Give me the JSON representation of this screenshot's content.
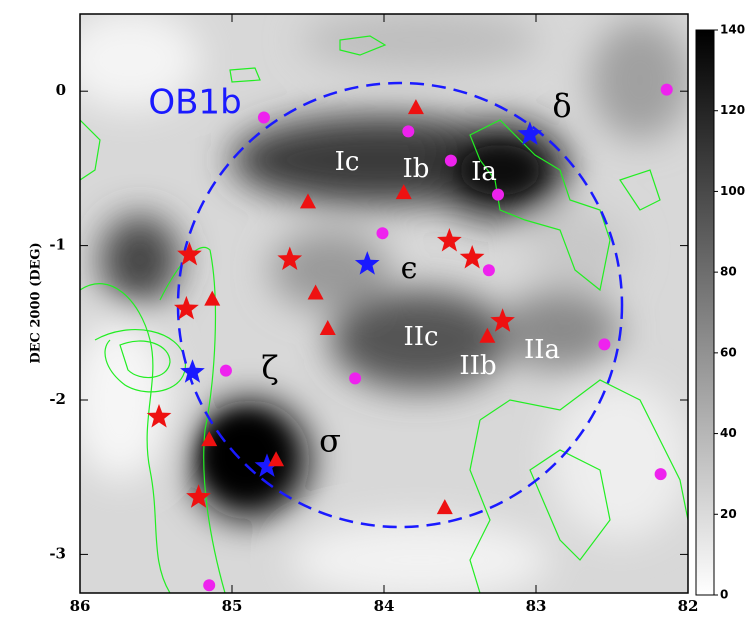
{
  "chart_data": {
    "type": "scatter",
    "ylabel": "DEC 2000 (DEG)",
    "xlim": [
      86,
      82
    ],
    "xticks": [
      86,
      85,
      84,
      83,
      82
    ],
    "ylim": [
      -3.25,
      0.5
    ],
    "yticks": [
      0,
      -1,
      -2,
      -3
    ],
    "clim": [
      0,
      140
    ],
    "cticks": [
      0,
      20,
      40,
      60,
      80,
      100,
      120,
      140
    ],
    "series": [
      {
        "marker": "star",
        "color": "#1a1aff",
        "x": [
          83.04,
          84.11,
          85.26,
          84.77
        ],
        "values": [
          -0.28,
          -1.12,
          -1.82,
          -2.43
        ]
      },
      {
        "marker": "star",
        "color": "#ee1111",
        "x": [
          85.28,
          84.62,
          83.57,
          83.42,
          83.22,
          85.3,
          85.48,
          85.22
        ],
        "values": [
          -1.06,
          -1.09,
          -0.97,
          -1.08,
          -1.49,
          -1.41,
          -2.11,
          -2.63
        ]
      },
      {
        "marker": "triangle",
        "color": "#ee1111",
        "x": [
          83.79,
          84.5,
          83.87,
          84.45,
          84.37,
          85.13,
          85.15,
          84.71,
          83.6,
          83.32
        ],
        "values": [
          -0.11,
          -0.72,
          -0.66,
          -1.31,
          -1.54,
          -1.35,
          -2.26,
          -2.39,
          -2.7,
          -1.59
        ]
      },
      {
        "marker": "circle",
        "color": "#ee22ee",
        "x": [
          82.14,
          84.79,
          83.84,
          83.56,
          83.25,
          84.01,
          83.31,
          85.04,
          84.19,
          82.55,
          82.18,
          85.15
        ],
        "values": [
          0.01,
          -0.17,
          -0.26,
          -0.45,
          -0.67,
          -0.92,
          -1.16,
          -1.81,
          -1.86,
          -1.64,
          -2.48,
          -3.2
        ]
      }
    ],
    "annotations": [
      "OB1b",
      "δ",
      "Ic",
      "Ib",
      "Ia",
      "ϵ",
      "IIc",
      "IIb",
      "IIa",
      "ζ",
      "σ"
    ]
  }
}
